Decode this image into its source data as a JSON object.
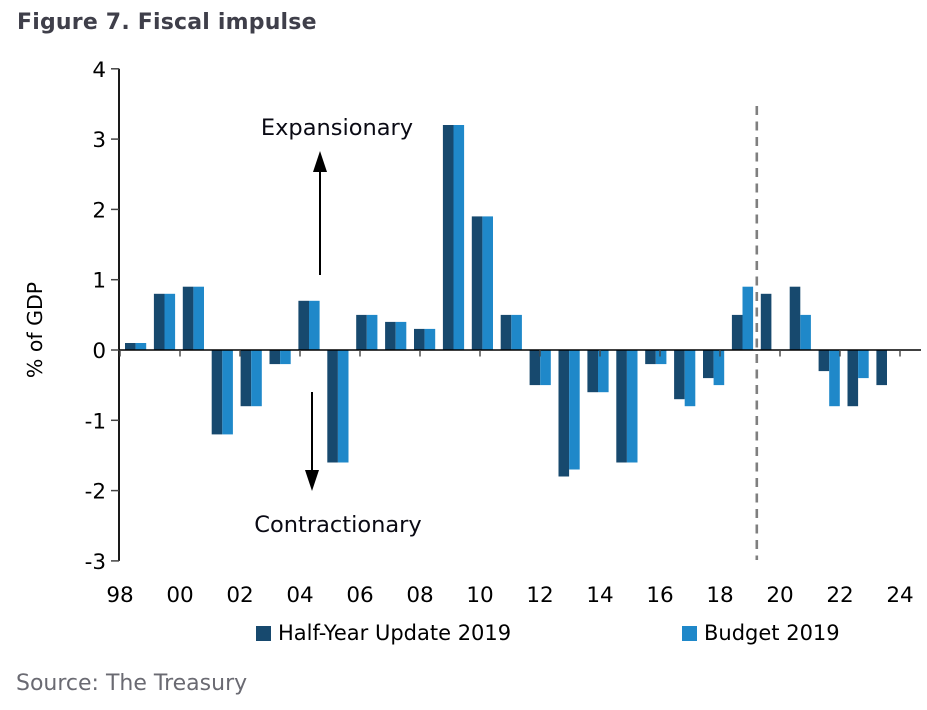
{
  "title": "Figure 7. Fiscal impulse",
  "source": "Source: The Treasury",
  "colors": {
    "half_year_update": "#17496e",
    "budget": "#1f88c9",
    "title_text": "#3f3f4a",
    "source_text": "#6a6a72",
    "axis": "#000000",
    "tick": "#444444",
    "dashed_divider": "#7f7f7f",
    "annotation_text": "#0a0a14"
  },
  "legend": [
    {
      "label": "Half-Year Update 2019",
      "color": "#17496e"
    },
    {
      "label": "Budget 2019",
      "color": "#1f88c9"
    }
  ],
  "chart_data": {
    "type": "bar",
    "title": "Figure 7. Fiscal impulse",
    "xlabel": "",
    "ylabel": "% of GDP",
    "ylim": [
      -3,
      4
    ],
    "yticks": [
      4,
      3,
      2,
      1,
      0,
      -1,
      -2,
      -3
    ],
    "xtick_labels": [
      "98",
      "00",
      "02",
      "04",
      "06",
      "08",
      "10",
      "12",
      "14",
      "16",
      "18",
      "20",
      "22",
      "24"
    ],
    "years": [
      1998,
      1999,
      2000,
      2001,
      2002,
      2003,
      2004,
      2005,
      2006,
      2007,
      2008,
      2009,
      2010,
      2011,
      2012,
      2013,
      2014,
      2015,
      2016,
      2017,
      2018,
      2019,
      2020,
      2021,
      2022,
      2023,
      2024
    ],
    "series": [
      {
        "name": "Half-Year Update 2019",
        "color": "#17496e",
        "values": [
          0.1,
          0.8,
          0.9,
          -1.2,
          -0.8,
          -0.2,
          0.7,
          -1.6,
          0.5,
          0.4,
          0.3,
          3.2,
          1.9,
          0.5,
          -0.5,
          -1.8,
          -0.6,
          -1.6,
          -0.2,
          -0.7,
          -0.4,
          0.5,
          0.8,
          0.9,
          -0.3,
          -0.8,
          -0.5
        ]
      },
      {
        "name": "Budget 2019",
        "color": "#1f88c9",
        "values": [
          0.1,
          0.8,
          0.9,
          -1.2,
          -0.8,
          -0.2,
          0.7,
          -1.6,
          0.5,
          0.4,
          0.3,
          3.2,
          1.9,
          0.5,
          -0.5,
          -1.7,
          -0.6,
          -1.6,
          -0.2,
          -0.8,
          -0.5,
          0.9,
          null,
          0.5,
          -0.8,
          -0.4,
          null
        ]
      }
    ],
    "annotations": {
      "expansionary": "Expansionary",
      "contractionary": "Contractionary"
    },
    "forecast_divider_after_year": 2019,
    "grid": false,
    "legend_position": "bottom"
  }
}
